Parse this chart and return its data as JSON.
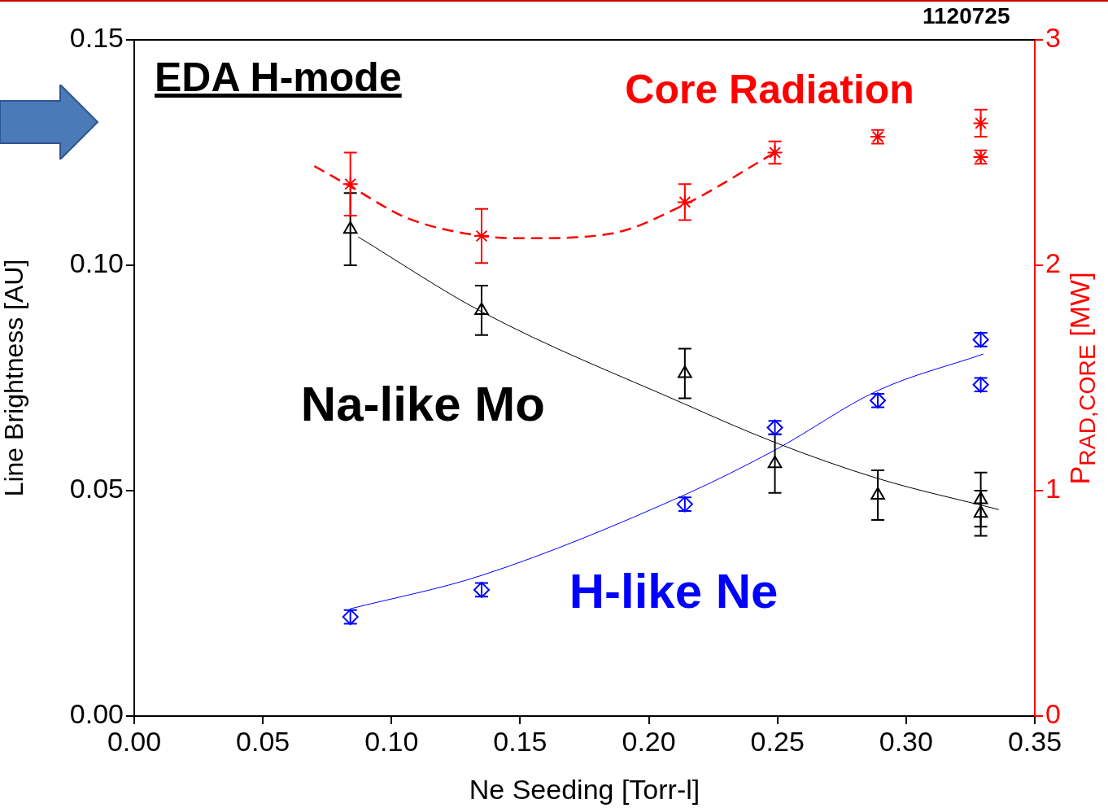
{
  "chart_data": {
    "type": "scatter",
    "xlabel": "Ne Seeding [Torr-l]",
    "ylabel": "Line Brightness [AU]",
    "y2label": "P$_{RAD,CORE}$ [MW]",
    "xlim": [
      0,
      0.35
    ],
    "xticks": [
      {
        "value": 0,
        "label": "0.00"
      },
      {
        "value": 0.05,
        "label": "0.05"
      },
      {
        "value": 0.1,
        "label": "0.10"
      },
      {
        "value": 0.15,
        "label": "0.15"
      },
      {
        "value": 0.2,
        "label": "0.20"
      },
      {
        "value": 0.25,
        "label": "0.25"
      },
      {
        "value": 0.3,
        "label": "0.30"
      },
      {
        "value": 0.35,
        "label": "0.35"
      }
    ],
    "ylim": [
      0,
      0.15
    ],
    "yticks": [
      {
        "value": 0,
        "label": "0.00"
      },
      {
        "value": 0.05,
        "label": "0.05"
      },
      {
        "value": 0.1,
        "label": "0.10"
      },
      {
        "value": 0.15,
        "label": "0.15"
      }
    ],
    "y2lim": [
      0,
      3
    ],
    "y2ticks": [
      0,
      1,
      2,
      3
    ],
    "grid": false,
    "legend": false,
    "annotations": [
      "1120725",
      "EDA H-mode"
    ],
    "series": [
      {
        "name": "Na-like Mo",
        "marker": "triangle",
        "color": "#000000",
        "x": [
          0.084,
          0.135,
          0.214,
          0.249,
          0.289,
          0.329,
          0.329
        ],
        "values": [
          0.108,
          0.09,
          0.076,
          0.056,
          0.049,
          0.048,
          0.045
        ],
        "errors": [
          0.008,
          0.0055,
          0.0055,
          0.0065,
          0.0055,
          0.006,
          0.005
        ]
      },
      {
        "type": "line",
        "marker": "none",
        "line_style": "solid",
        "color": "#000000",
        "x": [
          0.087,
          0.135,
          0.214,
          0.249,
          0.289,
          0.336
        ],
        "values": [
          0.1063,
          0.0897,
          0.0692,
          0.0607,
          0.0527,
          0.0458
        ]
      },
      {
        "name": "H-like Ne",
        "marker": "diamond",
        "color": "#0000ff",
        "x": [
          0.084,
          0.135,
          0.214,
          0.249,
          0.289,
          0.329,
          0.329
        ],
        "values": [
          0.022,
          0.028,
          0.047,
          0.064,
          0.07,
          0.0835,
          0.0735
        ],
        "errors": [
          0.0015,
          0.0015,
          0.0015,
          0.0015,
          0.0015,
          0.0015,
          0.0015
        ]
      },
      {
        "type": "line",
        "marker": "none",
        "line_style": "solid",
        "color": "#0000ff",
        "x": [
          0.084,
          0.135,
          0.214,
          0.249,
          0.289,
          0.33
        ],
        "values": [
          0.0238,
          0.0312,
          0.0491,
          0.059,
          0.0722,
          0.0803
        ]
      },
      {
        "name": "Core Radiation",
        "axis": "y2",
        "marker": "cross",
        "color": "#ff0000",
        "x": [
          0.084,
          0.135,
          0.214,
          0.249,
          0.289,
          0.329,
          0.329
        ],
        "values": [
          2.36,
          2.13,
          2.28,
          2.5,
          2.57,
          2.63,
          2.48
        ],
        "errors": [
          0.14,
          0.12,
          0.08,
          0.05,
          0.03,
          0.06,
          0.03
        ]
      },
      {
        "type": "line",
        "axis": "y2",
        "marker": "none",
        "line_style": "dashed",
        "color": "#ff0000",
        "x": [
          0.07,
          0.084,
          0.106,
          0.135,
          0.153,
          0.185,
          0.214,
          0.249
        ],
        "values": [
          2.44,
          2.35,
          2.21,
          2.13,
          2.12,
          2.14,
          2.27,
          2.5
        ]
      }
    ]
  }
}
